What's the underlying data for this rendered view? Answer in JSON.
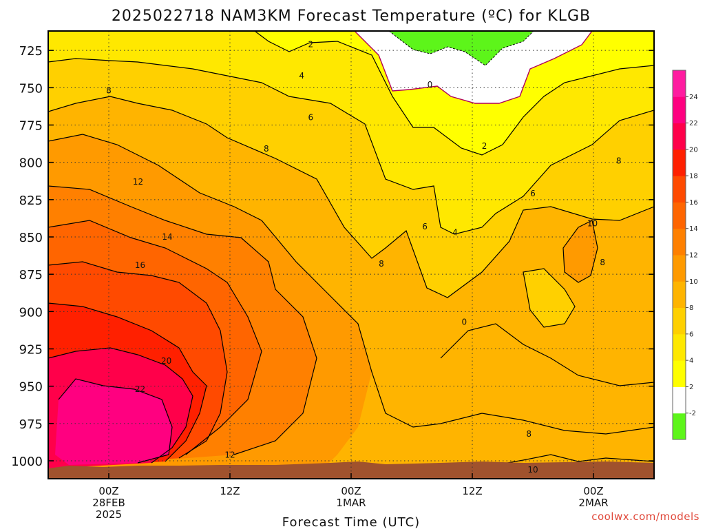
{
  "chart_data": {
    "type": "heatmap",
    "title": "2025022718 NAM3KM Forecast Temperature (ºC) for KLGB",
    "xlabel": "Forecast Time (UTC)",
    "ylabel": "",
    "credit": "coolwx.com/models",
    "y_ticks": [
      725,
      750,
      775,
      800,
      825,
      850,
      875,
      900,
      925,
      950,
      975,
      1000
    ],
    "ylim": [
      712,
      1012
    ],
    "y_inverted": true,
    "x_ticks": [
      {
        "hour": 6,
        "lines": [
          "00Z",
          "28FEB",
          "2025"
        ]
      },
      {
        "hour": 18,
        "lines": [
          "12Z"
        ]
      },
      {
        "hour": 30,
        "lines": [
          "00Z",
          "1MAR"
        ]
      },
      {
        "hour": 42,
        "lines": [
          "12Z"
        ]
      },
      {
        "hour": 54,
        "lines": [
          "00Z",
          "2MAR"
        ]
      }
    ],
    "xlim": [
      0,
      60
    ],
    "grid": true,
    "colorbar": {
      "levels": [
        -2,
        0,
        2,
        4,
        6,
        8,
        10,
        12,
        14,
        16,
        18,
        20,
        22,
        24
      ],
      "labels": [
        "-2",
        "2",
        "4",
        "6",
        "8",
        "10",
        "12",
        "14",
        "16",
        "18",
        "20",
        "22",
        "24"
      ],
      "colors": [
        "#5df51a",
        "#ffffff",
        "#ffff00",
        "#ffe800",
        "#ffd000",
        "#ffb400",
        "#ff9a00",
        "#ff8000",
        "#ff6500",
        "#ff4a00",
        "#ff2000",
        "#ff004a",
        "#ff0080",
        "#ff1ca0"
      ]
    },
    "contour_labels": [
      {
        "text": "2",
        "x": 26,
        "y": 721
      },
      {
        "text": "4",
        "x": 25.1,
        "y": 742
      },
      {
        "text": "6",
        "x": 26,
        "y": 770
      },
      {
        "text": "8",
        "x": 6,
        "y": 752
      },
      {
        "text": "8",
        "x": 21.6,
        "y": 791
      },
      {
        "text": "0",
        "x": 37.8,
        "y": 748
      },
      {
        "text": "2",
        "x": 43.2,
        "y": 789
      },
      {
        "text": "12",
        "x": 8.9,
        "y": 813
      },
      {
        "text": "14",
        "x": 11.8,
        "y": 850
      },
      {
        "text": "16",
        "x": 9.1,
        "y": 869
      },
      {
        "text": "20",
        "x": 11.7,
        "y": 933
      },
      {
        "text": "22",
        "x": 9.1,
        "y": 952
      },
      {
        "text": "12",
        "x": 18,
        "y": 996
      },
      {
        "text": "6",
        "x": 37.3,
        "y": 843
      },
      {
        "text": "4",
        "x": 40.3,
        "y": 847
      },
      {
        "text": "8",
        "x": 33,
        "y": 868
      },
      {
        "text": "6",
        "x": 48,
        "y": 821
      },
      {
        "text": "8",
        "x": 56.5,
        "y": 799
      },
      {
        "text": "10",
        "x": 53.9,
        "y": 841
      },
      {
        "text": "8",
        "x": 54.9,
        "y": 867
      },
      {
        "text": "0",
        "x": 41.2,
        "y": 907
      },
      {
        "text": "8",
        "x": 47.6,
        "y": 982
      },
      {
        "text": "10",
        "x": 48,
        "y": 1006
      }
    ]
  },
  "colors": {
    "ground": "#a0522d",
    "freezing_line": "#b0005a"
  }
}
